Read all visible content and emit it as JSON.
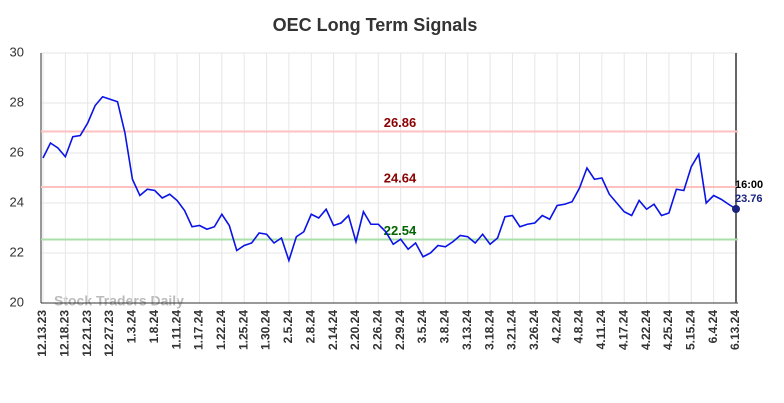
{
  "chart_data": {
    "type": "line",
    "title": "OEC Long Term Signals",
    "x": [
      "12.13.23",
      null,
      null,
      "12.18.23",
      null,
      null,
      "12.21.23",
      null,
      null,
      "12.27.23",
      null,
      null,
      "1.3.24",
      null,
      null,
      "1.8.24",
      null,
      null,
      "1.11.24",
      null,
      null,
      "1.17.24",
      null,
      null,
      "1.22.24",
      null,
      null,
      "1.25.24",
      null,
      null,
      "1.30.24",
      null,
      null,
      "2.5.24",
      null,
      null,
      "2.8.24",
      null,
      null,
      "2.14.24",
      null,
      null,
      "2.20.24",
      null,
      null,
      "2.26.24",
      null,
      null,
      "2.29.24",
      null,
      null,
      "3.5.24",
      null,
      null,
      "3.8.24",
      null,
      null,
      "3.13.24",
      null,
      null,
      "3.18.24",
      null,
      null,
      "3.21.24",
      null,
      null,
      "3.26.24",
      null,
      null,
      "4.2.24",
      null,
      null,
      "4.8.24",
      null,
      null,
      "4.11.24",
      null,
      null,
      "4.17.24",
      null,
      null,
      "4.22.24",
      null,
      null,
      "4.25.24",
      null,
      null,
      "5.15.24",
      null,
      null,
      "6.4.24",
      null,
      null,
      "6.13.24"
    ],
    "series": [
      {
        "name": "OEC",
        "color": "#0a14e6",
        "values": [
          25.8,
          26.4,
          26.2,
          25.85,
          26.65,
          26.7,
          27.2,
          27.9,
          28.25,
          28.15,
          28.05,
          26.8,
          24.95,
          24.3,
          24.55,
          24.5,
          24.2,
          24.35,
          24.1,
          23.7,
          23.05,
          23.1,
          22.95,
          23.05,
          23.55,
          23.1,
          22.1,
          22.3,
          22.4,
          22.8,
          22.75,
          22.4,
          22.6,
          21.7,
          22.65,
          22.85,
          23.55,
          23.4,
          23.75,
          23.1,
          23.2,
          23.5,
          22.45,
          23.65,
          23.15,
          23.15,
          22.85,
          22.35,
          22.55,
          22.15,
          22.4,
          21.85,
          22.0,
          22.3,
          22.25,
          22.45,
          22.7,
          22.65,
          22.4,
          22.75,
          22.35,
          22.6,
          23.45,
          23.5,
          23.05,
          23.15,
          23.2,
          23.5,
          23.35,
          23.9,
          23.95,
          24.05,
          24.6,
          25.4,
          24.95,
          25.0,
          24.35,
          24.0,
          23.65,
          23.5,
          24.1,
          23.75,
          23.95,
          23.5,
          23.6,
          24.55,
          24.5,
          25.45,
          25.95,
          24.0,
          24.3,
          24.15,
          23.95,
          23.76
        ]
      }
    ],
    "ylim": [
      20,
      30
    ],
    "yticks": [
      20,
      22,
      24,
      26,
      28,
      30
    ],
    "grid": true,
    "hlines": [
      {
        "value": 26.86,
        "color": "#ffc0c0",
        "label_color": "#8b0000"
      },
      {
        "value": 24.64,
        "color": "#ffc0c0",
        "label_color": "#8b0000"
      },
      {
        "value": 22.54,
        "color": "#a8e0a8",
        "label_color": "#006400"
      }
    ],
    "last_time": "16:00",
    "watermark": "Stock Traders Daily"
  }
}
